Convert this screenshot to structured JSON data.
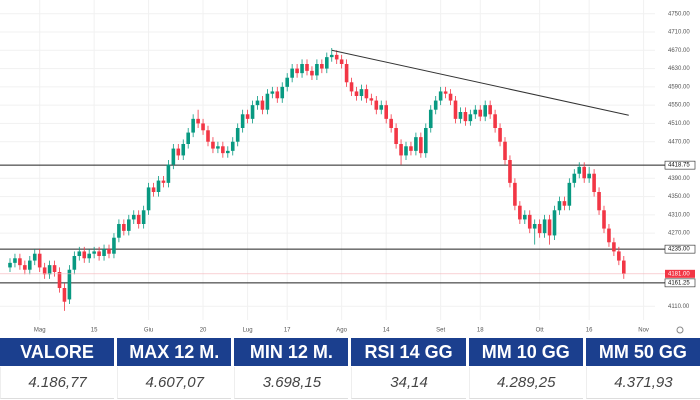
{
  "chart_data": {
    "type": "candlestick",
    "categories": [
      null,
      null,
      null,
      null,
      null,
      null,
      "Mag",
      null,
      null,
      null,
      null,
      null,
      null,
      null,
      null,
      null,
      null,
      "15",
      null,
      null,
      null,
      null,
      null,
      null,
      null,
      null,
      null,
      null,
      "Giu",
      null,
      null,
      null,
      null,
      null,
      null,
      null,
      null,
      null,
      null,
      "20",
      null,
      null,
      null,
      null,
      null,
      null,
      null,
      null,
      "Lug",
      null,
      null,
      null,
      null,
      null,
      null,
      null,
      "17",
      null,
      null,
      null,
      null,
      null,
      null,
      null,
      null,
      null,
      null,
      "Ago",
      null,
      null,
      null,
      null,
      null,
      null,
      null,
      null,
      "14",
      null,
      null,
      null,
      null,
      null,
      null,
      null,
      null,
      null,
      null,
      "Set",
      null,
      null,
      null,
      null,
      null,
      null,
      null,
      "18",
      null,
      null,
      null,
      null,
      null,
      null,
      null,
      null,
      null,
      null,
      null,
      "Ott",
      null,
      null,
      null,
      null,
      null,
      null,
      null,
      null,
      null,
      "16",
      null,
      null,
      null,
      null,
      null,
      null,
      null,
      null,
      null,
      null,
      "Nov"
    ],
    "open": [
      4195,
      4205,
      4215,
      4200,
      4190,
      4210,
      4225,
      4195,
      4180,
      4200,
      4185,
      4150,
      4125,
      4190,
      4220,
      4230,
      4215,
      4225,
      4230,
      4220,
      4235,
      4225,
      4260,
      4290,
      4275,
      4300,
      4310,
      4290,
      4320,
      4370,
      4360,
      4385,
      4380,
      4420,
      4455,
      4440,
      4465,
      4490,
      4520,
      4510,
      4495,
      4470,
      4455,
      4460,
      4445,
      4450,
      4470,
      4500,
      4530,
      4520,
      4550,
      4560,
      4540,
      4575,
      4580,
      4565,
      4590,
      4610,
      4630,
      4620,
      4640,
      4625,
      4615,
      4640,
      4630,
      4655,
      4660,
      4650,
      4640,
      4600,
      4580,
      4570,
      4585,
      4565,
      4560,
      4540,
      4550,
      4520,
      4500,
      4465,
      4440,
      4460,
      4450,
      4480,
      4445,
      4500,
      4540,
      4560,
      4580,
      4575,
      4560,
      4520,
      4535,
      4515,
      4530,
      4540,
      4525,
      4550,
      4530,
      4500,
      4470,
      4430,
      4380,
      4330,
      4300,
      4310,
      4280,
      4290,
      4270,
      4300,
      4265,
      4320,
      4340,
      4330,
      4380,
      4400,
      4415,
      4390,
      4400,
      4360,
      4320,
      4280,
      4250,
      4230,
      4210,
      null,
      null,
      null,
      null
    ],
    "high": [
      4215,
      4225,
      4225,
      4210,
      4220,
      4235,
      4235,
      4205,
      4210,
      4210,
      4195,
      4160,
      4200,
      4230,
      4240,
      4240,
      4235,
      4240,
      4240,
      4245,
      4245,
      4270,
      4300,
      4300,
      4310,
      4320,
      4320,
      4330,
      4380,
      4380,
      4395,
      4395,
      4430,
      4465,
      4465,
      4475,
      4500,
      4530,
      4540,
      4520,
      4505,
      4480,
      4470,
      4470,
      4460,
      4480,
      4510,
      4540,
      4540,
      4560,
      4570,
      4570,
      4585,
      4590,
      4590,
      4600,
      4620,
      4640,
      4640,
      4650,
      4650,
      4635,
      4650,
      4650,
      4665,
      4675,
      4670,
      4660,
      4650,
      4610,
      4590,
      4595,
      4595,
      4575,
      4570,
      4560,
      4560,
      4530,
      4510,
      4475,
      4470,
      4470,
      4490,
      4490,
      4510,
      4550,
      4570,
      4590,
      4590,
      4585,
      4570,
      4545,
      4545,
      4540,
      4550,
      4550,
      4560,
      4560,
      4540,
      4510,
      4480,
      4440,
      4390,
      4340,
      4320,
      4320,
      4300,
      4300,
      4310,
      4310,
      4330,
      4350,
      4350,
      4390,
      4410,
      4425,
      4425,
      4415,
      4410,
      4370,
      4330,
      4290,
      4260,
      4240,
      4220,
      null,
      null,
      null,
      null
    ],
    "low": [
      4185,
      4195,
      4190,
      4180,
      4180,
      4200,
      4185,
      4170,
      4170,
      4175,
      4140,
      4100,
      4115,
      4180,
      4210,
      4205,
      4205,
      4215,
      4210,
      4210,
      4215,
      4215,
      4250,
      4265,
      4265,
      4290,
      4280,
      4280,
      4310,
      4350,
      4350,
      4370,
      4370,
      4410,
      4430,
      4430,
      4455,
      4480,
      4500,
      4485,
      4460,
      4445,
      4445,
      4435,
      4435,
      4440,
      4460,
      4490,
      4510,
      4510,
      4540,
      4530,
      4530,
      4565,
      4555,
      4555,
      4580,
      4600,
      4610,
      4610,
      4615,
      4605,
      4605,
      4620,
      4620,
      4645,
      4640,
      4630,
      4590,
      4570,
      4560,
      4560,
      4555,
      4550,
      4530,
      4530,
      4510,
      4490,
      4455,
      4420,
      4430,
      4440,
      4440,
      4435,
      4435,
      4490,
      4530,
      4550,
      4565,
      4550,
      4510,
      4510,
      4505,
      4505,
      4520,
      4515,
      4515,
      4520,
      4490,
      4460,
      4420,
      4370,
      4320,
      4290,
      4290,
      4270,
      4245,
      4260,
      4260,
      4245,
      4255,
      4310,
      4320,
      4320,
      4370,
      4390,
      4380,
      4380,
      4350,
      4310,
      4270,
      4240,
      4220,
      4200,
      4170,
      null,
      null,
      null,
      null
    ],
    "close": [
      4205,
      4215,
      4200,
      4190,
      4210,
      4225,
      4195,
      4180,
      4200,
      4185,
      4150,
      4120,
      4190,
      4220,
      4230,
      4215,
      4225,
      4230,
      4220,
      4235,
      4225,
      4260,
      4290,
      4275,
      4300,
      4310,
      4290,
      4320,
      4370,
      4360,
      4385,
      4380,
      4420,
      4455,
      4440,
      4465,
      4490,
      4520,
      4510,
      4495,
      4470,
      4455,
      4460,
      4445,
      4450,
      4470,
      4500,
      4530,
      4520,
      4550,
      4560,
      4540,
      4575,
      4580,
      4565,
      4590,
      4610,
      4630,
      4620,
      4640,
      4625,
      4615,
      4640,
      4630,
      4655,
      4660,
      4650,
      4640,
      4600,
      4580,
      4570,
      4585,
      4565,
      4560,
      4540,
      4550,
      4520,
      4500,
      4465,
      4440,
      4460,
      4450,
      4480,
      4445,
      4500,
      4540,
      4560,
      4580,
      4575,
      4560,
      4520,
      4535,
      4515,
      4530,
      4540,
      4525,
      4550,
      4530,
      4500,
      4470,
      4430,
      4380,
      4330,
      4300,
      4310,
      4280,
      4290,
      4270,
      4300,
      4265,
      4320,
      4340,
      4330,
      4380,
      4400,
      4415,
      4390,
      4400,
      4360,
      4320,
      4280,
      4250,
      4230,
      4210,
      4181,
      null,
      null,
      null,
      null
    ],
    "up_color": "#089981",
    "down_color": "#f23645",
    "ylim": [
      4080,
      4780
    ],
    "yticks": [
      {
        "value": 4750,
        "label": "4750.00"
      },
      {
        "value": 4710,
        "label": "4710.00"
      },
      {
        "value": 4670,
        "label": "4670.00"
      },
      {
        "value": 4630,
        "label": "4630.00"
      },
      {
        "value": 4590,
        "label": "4590.00"
      },
      {
        "value": 4550,
        "label": "4550.00"
      },
      {
        "value": 4510,
        "label": "4510.00"
      },
      {
        "value": 4470,
        "label": "4470.00"
      },
      {
        "value": 4390,
        "label": "4390.00"
      },
      {
        "value": 4350,
        "label": "4350.00"
      },
      {
        "value": 4310,
        "label": "4310.00"
      },
      {
        "value": 4270,
        "label": "4270.00"
      },
      {
        "value": 4110,
        "label": "4110.00"
      }
    ],
    "grid": true,
    "levels": [
      {
        "value": 4418.75,
        "label": "4418.75"
      },
      {
        "value": 4235,
        "label": "4235.00"
      },
      {
        "value": 4161.25,
        "label": "4161.25"
      }
    ],
    "last_price": {
      "value": 4181,
      "label": "4181.00"
    },
    "trendline": {
      "start": [
        65,
        4670
      ],
      "end": [
        125,
        4528
      ]
    }
  },
  "table": {
    "headers": [
      "VALORE",
      "MAX 12 M.",
      "MIN 12 M.",
      "RSI 14 GG",
      "MM 10 GG",
      "MM 50 GG"
    ],
    "rows": [
      [
        "4.186,77",
        "4.607,07",
        "3.698,15",
        "34,14",
        "4.289,25",
        "4.371,93"
      ]
    ]
  }
}
